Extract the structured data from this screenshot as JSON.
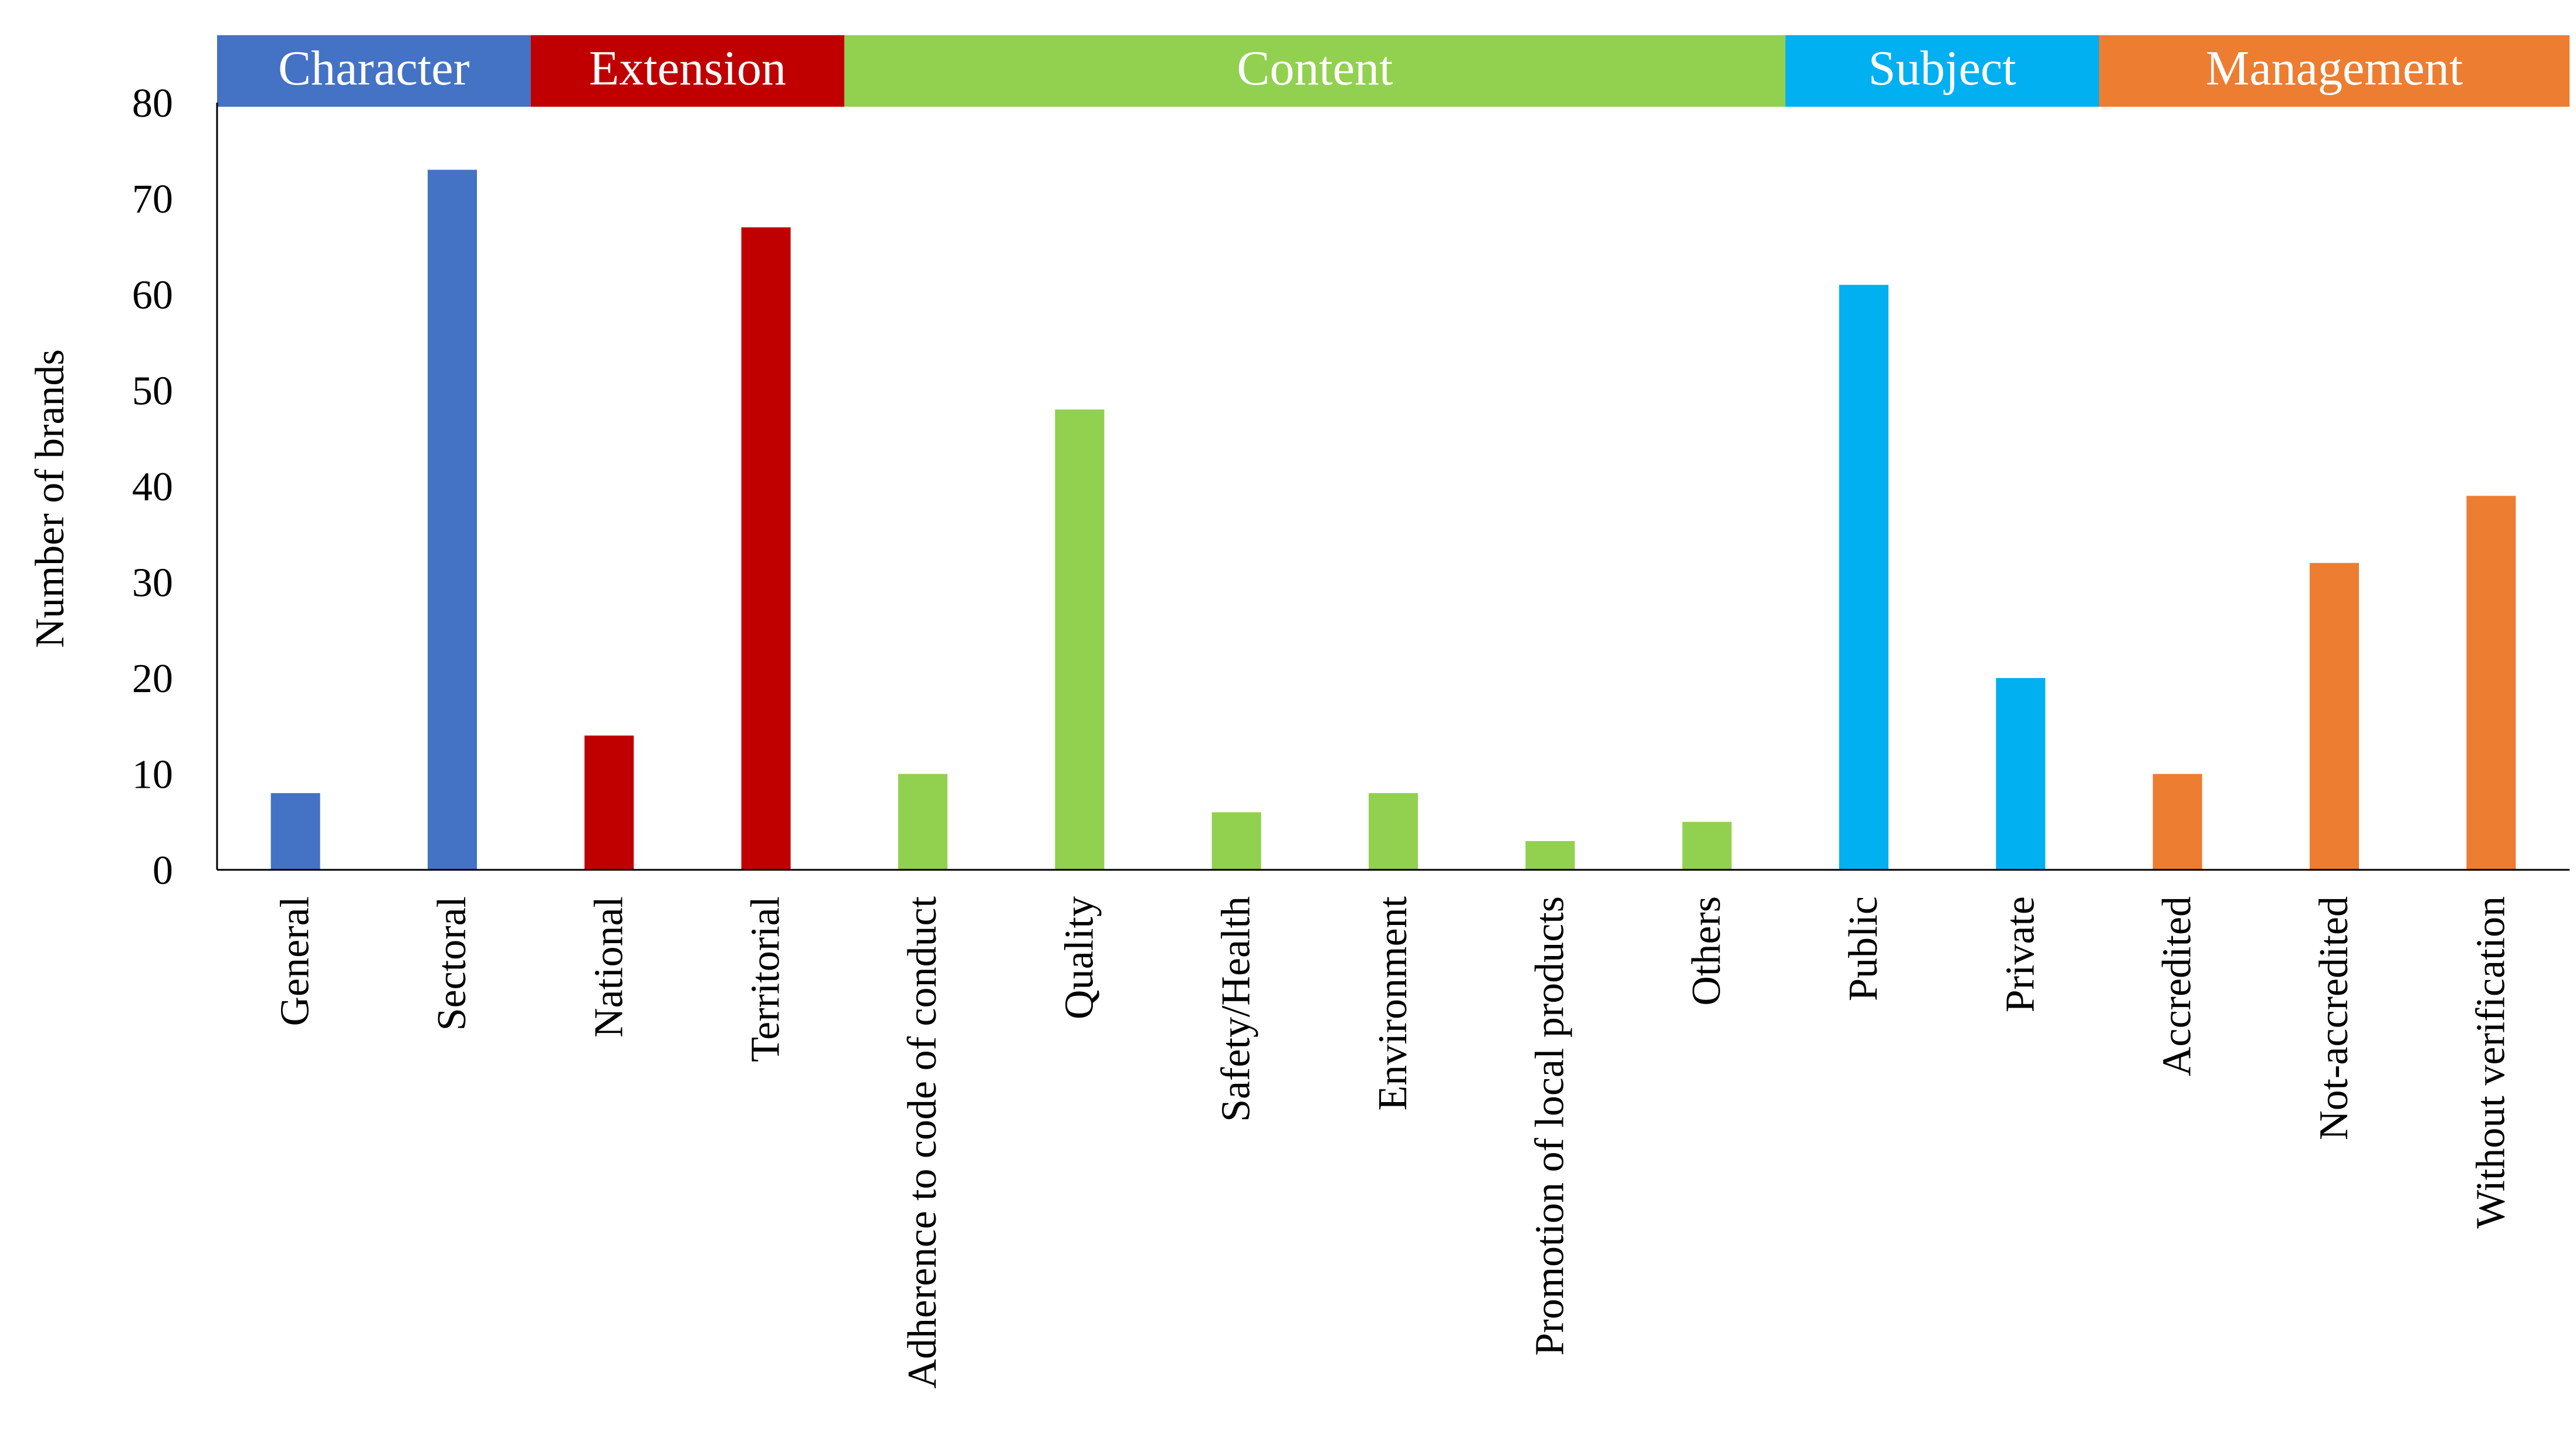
{
  "chart_data": {
    "type": "bar",
    "title": "",
    "xlabel": "",
    "ylabel": "Number of brands",
    "ylim": [
      0,
      80
    ],
    "yticks": [
      0,
      10,
      20,
      30,
      40,
      50,
      60,
      70,
      80
    ],
    "grid": false,
    "categories": [
      "General",
      "Sectoral",
      "National",
      "Territorial",
      "Adherence to code of conduct",
      "Quality",
      "Safety/Health",
      "Environment",
      "Promotion of local products",
      "Others",
      "Public",
      "Private",
      "Accredited",
      "Not-accredited",
      "Without verification"
    ],
    "values": [
      8,
      73,
      14,
      67,
      10,
      48,
      6,
      8,
      3,
      5,
      61,
      20,
      10,
      32,
      39
    ],
    "groups": [
      {
        "name": "Character",
        "color": "#4472C4",
        "categories": [
          "General",
          "Sectoral"
        ]
      },
      {
        "name": "Extension",
        "color": "#C00000",
        "categories": [
          "National",
          "Territorial"
        ]
      },
      {
        "name": "Content",
        "color": "#92D050",
        "categories": [
          "Adherence to code of conduct",
          "Quality",
          "Safety/Health",
          "Environment",
          "Promotion of local products",
          "Others"
        ]
      },
      {
        "name": "Subject",
        "color": "#00B0F0",
        "categories": [
          "Public",
          "Private"
        ]
      },
      {
        "name": "Management",
        "color": "#ED7D31",
        "categories": [
          "Accredited",
          "Not-accredited",
          "Without verification"
        ]
      }
    ]
  }
}
